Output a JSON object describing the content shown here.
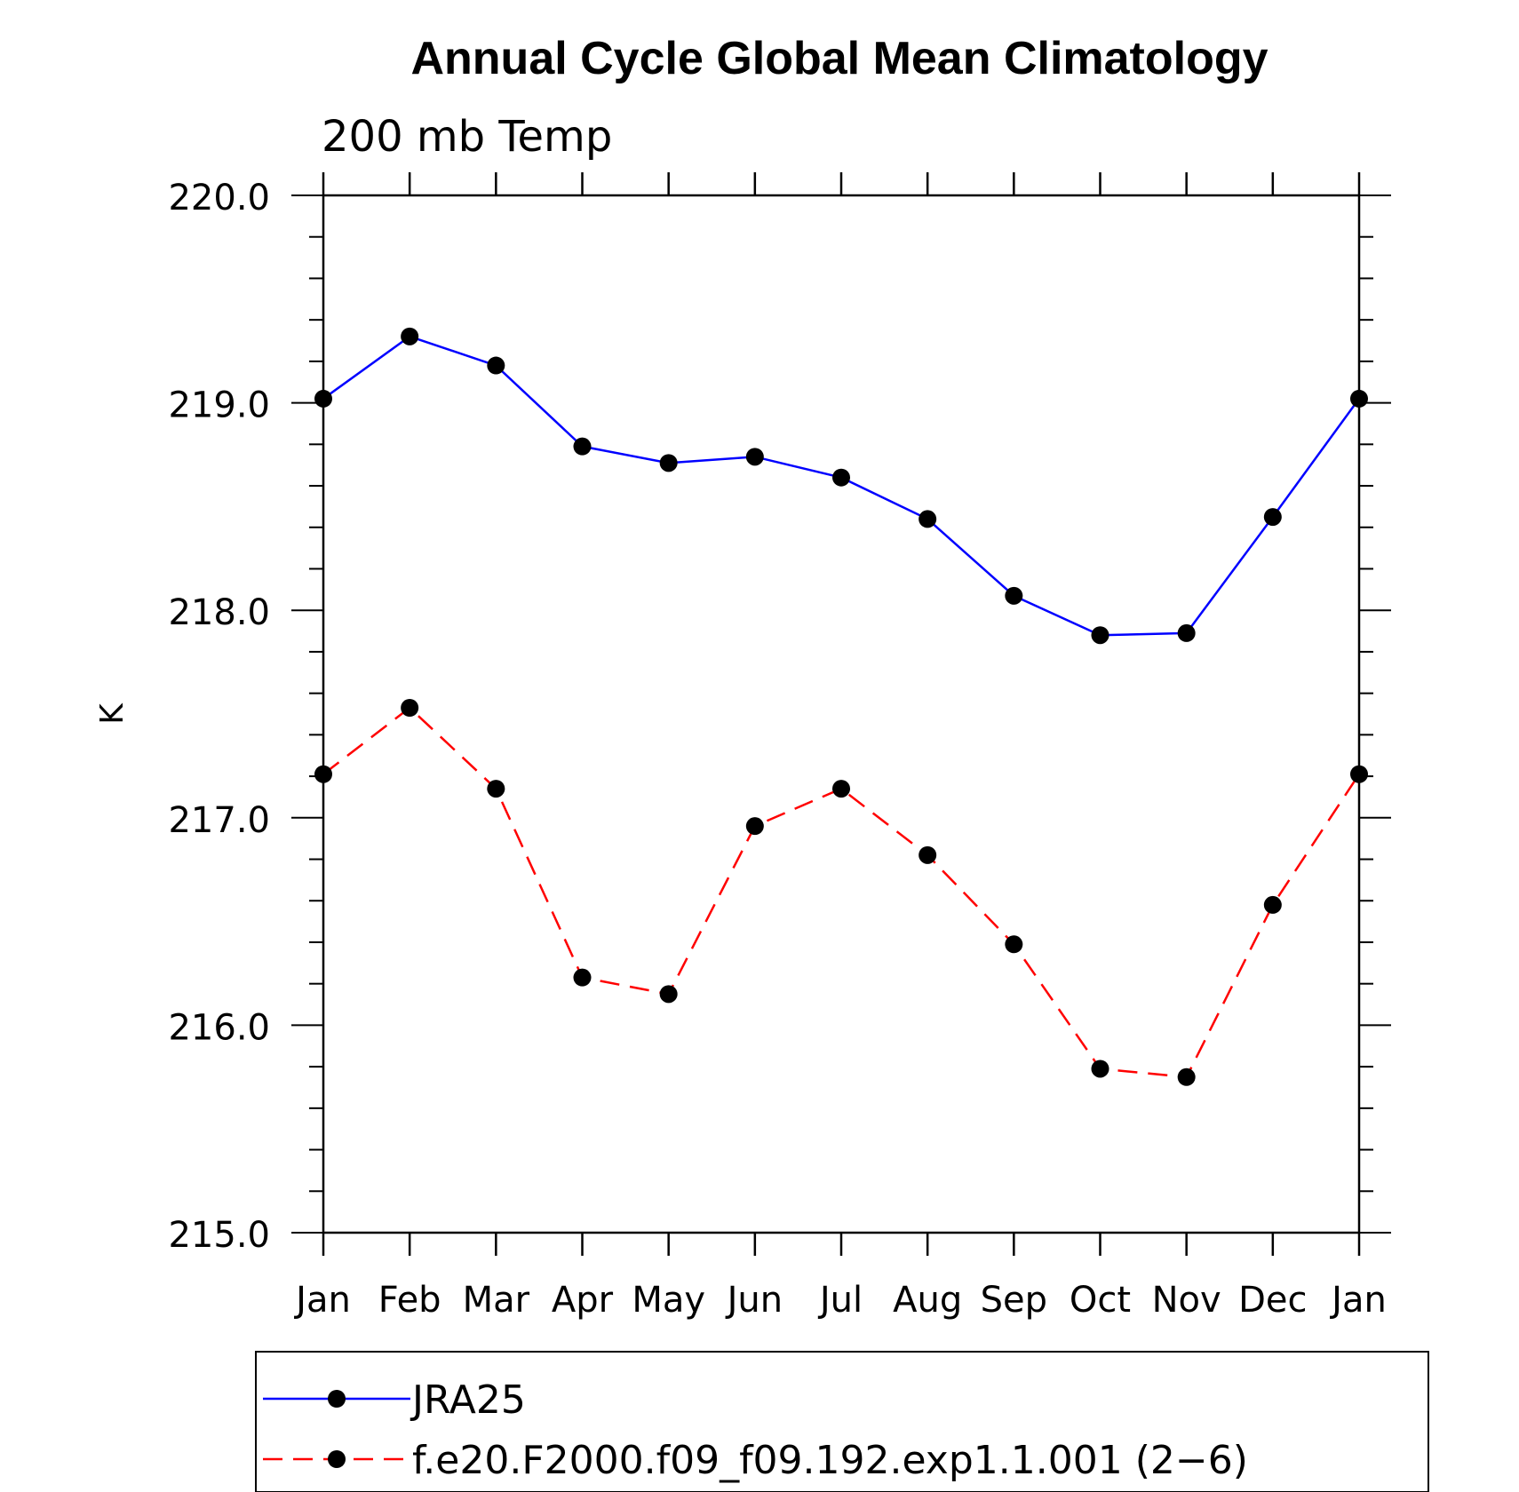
{
  "chart_data": {
    "type": "line",
    "title": "Annual Cycle Global Mean Climatology",
    "subtitle": "200 mb Temp",
    "xlabel": "",
    "ylabel": "K",
    "categories": [
      "Jan",
      "Feb",
      "Mar",
      "Apr",
      "May",
      "Jun",
      "Jul",
      "Aug",
      "Sep",
      "Oct",
      "Nov",
      "Dec",
      "Jan"
    ],
    "ylim": [
      215.0,
      220.0
    ],
    "yticks": [
      "215.0",
      "216.0",
      "217.0",
      "218.0",
      "219.0",
      "220.0"
    ],
    "ytick_values": [
      215.0,
      216.0,
      217.0,
      218.0,
      219.0,
      220.0
    ],
    "legend_position": "bottom",
    "series": [
      {
        "name": "JRA25",
        "color": "#0000ff",
        "dash": "solid",
        "marker": "dot",
        "values": [
          219.02,
          219.32,
          219.18,
          218.79,
          218.71,
          218.74,
          218.64,
          218.44,
          218.07,
          217.88,
          217.89,
          218.45,
          219.02
        ]
      },
      {
        "name": "f.e20.F2000.f09_f09.192.exp1.1.001 (2−6)",
        "color": "#ff0000",
        "dash": "dashed",
        "marker": "dot",
        "values": [
          217.21,
          217.53,
          217.14,
          216.23,
          216.15,
          216.96,
          217.14,
          216.82,
          216.39,
          215.79,
          215.75,
          216.58,
          217.21
        ]
      }
    ]
  }
}
